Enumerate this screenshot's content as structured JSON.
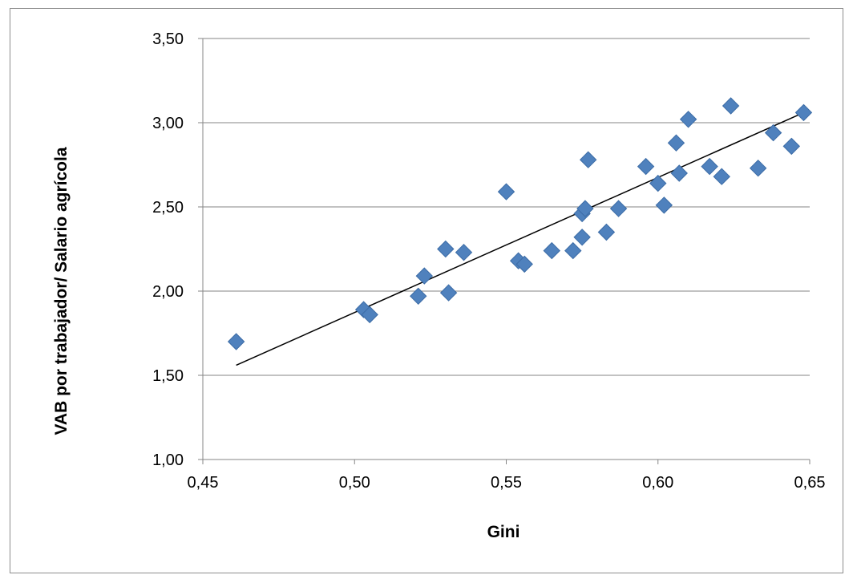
{
  "chart_data": {
    "type": "scatter",
    "xlabel": "Gini",
    "ylabel": "VAB por trabajador/ Salario agrícola",
    "xlim": [
      0.45,
      0.65
    ],
    "ylim": [
      1.0,
      3.5
    ],
    "x_ticks": [
      "0,45",
      "0,50",
      "0,55",
      "0,60",
      "0,65"
    ],
    "y_ticks": [
      "1,00",
      "1,50",
      "2,00",
      "2,50",
      "3,00",
      "3,50"
    ],
    "grid": "horizontal",
    "marker": "diamond",
    "colors": {
      "marker": "#4f81bd",
      "marker_edge": "#3c6ca6",
      "trendline": "#000000",
      "grid": "#868686",
      "axis": "#868686"
    },
    "series": [
      {
        "points": [
          [
            0.461,
            1.7
          ],
          [
            0.503,
            1.89
          ],
          [
            0.505,
            1.86
          ],
          [
            0.521,
            1.97
          ],
          [
            0.523,
            2.09
          ],
          [
            0.53,
            2.25
          ],
          [
            0.531,
            1.99
          ],
          [
            0.536,
            2.23
          ],
          [
            0.55,
            2.59
          ],
          [
            0.554,
            2.18
          ],
          [
            0.556,
            2.16
          ],
          [
            0.565,
            2.24
          ],
          [
            0.572,
            2.24
          ],
          [
            0.575,
            2.32
          ],
          [
            0.575,
            2.46
          ],
          [
            0.576,
            2.49
          ],
          [
            0.577,
            2.78
          ],
          [
            0.583,
            2.35
          ],
          [
            0.587,
            2.49
          ],
          [
            0.596,
            2.74
          ],
          [
            0.6,
            2.64
          ],
          [
            0.602,
            2.51
          ],
          [
            0.606,
            2.88
          ],
          [
            0.607,
            2.7
          ],
          [
            0.61,
            3.02
          ],
          [
            0.617,
            2.74
          ],
          [
            0.621,
            2.68
          ],
          [
            0.624,
            3.1
          ],
          [
            0.633,
            2.73
          ],
          [
            0.638,
            2.94
          ],
          [
            0.644,
            2.86
          ],
          [
            0.648,
            3.06
          ]
        ]
      }
    ],
    "trendline": {
      "type": "linear",
      "from": [
        0.461,
        1.56
      ],
      "to": [
        0.648,
        3.06
      ]
    }
  }
}
